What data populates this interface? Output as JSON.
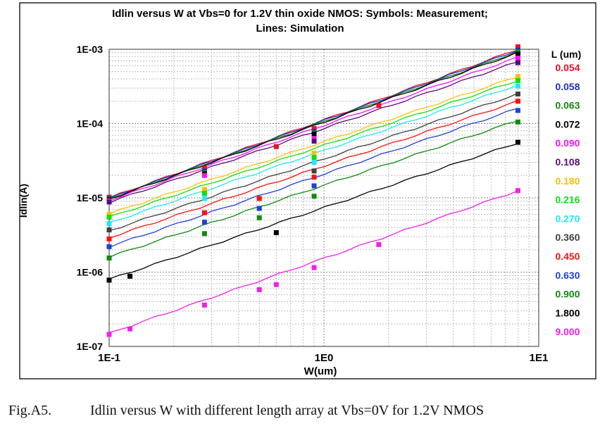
{
  "chart_data": {
    "type": "line",
    "title_line1": "Idlin versus W at Vbs=0 for 1.2V thin oxide NMOS: Symbols: Measurement;",
    "title_line2": "Lines: Simulation",
    "xlabel": "W(um)",
    "ylabel": "Idlin(A)",
    "x_scale": "log",
    "y_scale": "log",
    "xlim": [
      0.1,
      10
    ],
    "ylim": [
      1e-07,
      0.001
    ],
    "x_ticks": [
      "1E-1",
      "1E0",
      "1E1"
    ],
    "y_ticks": [
      "1E-03",
      "1E-04",
      "1E-05",
      "1E-06",
      "1E-07"
    ],
    "grid": true,
    "legend_title": "L (um)",
    "legend_position": "right",
    "series": [
      {
        "name": "0.054",
        "color": "#e8102a",
        "sim_y0": 1e-05,
        "sim_y1": 0.001,
        "meas": [
          [
            0.1,
            1.02e-05
          ],
          [
            0.278,
            2.5e-05
          ],
          [
            0.6,
            4.9e-05
          ],
          [
            0.9,
            8.6e-05
          ],
          [
            1.8,
            0.000175
          ],
          [
            8.0,
            0.00108
          ]
        ]
      },
      {
        "name": "0.058",
        "color": "#1c2fc8",
        "sim_y0": 9.9e-06,
        "sim_y1": 0.00097,
        "meas": [
          [
            0.1,
            9.8e-06
          ],
          [
            0.278,
            2.3e-05
          ],
          [
            0.9,
            7.8e-05
          ],
          [
            8.0,
            0.00097
          ]
        ]
      },
      {
        "name": "0.063",
        "color": "#108a10",
        "sim_y0": 9.7e-06,
        "sim_y1": 0.00093,
        "meas": [
          [
            0.1,
            9.6e-06
          ],
          [
            0.278,
            2.2e-05
          ],
          [
            0.9,
            7.5e-05
          ],
          [
            8.0,
            0.00093
          ]
        ]
      },
      {
        "name": "0.072",
        "color": "#000000",
        "sim_y0": 9.6e-06,
        "sim_y1": 0.0009,
        "meas": [
          [
            0.1,
            9.4e-06
          ],
          [
            0.278,
            2.1e-05
          ],
          [
            0.9,
            7.2e-05
          ],
          [
            8.0,
            0.00086
          ]
        ]
      },
      {
        "name": "0.090",
        "color": "#ff10ff",
        "sim_y0": 9.2e-06,
        "sim_y1": 0.00078,
        "meas": [
          [
            0.1,
            9.1e-06
          ],
          [
            0.278,
            2e-05
          ],
          [
            0.9,
            6.3e-05
          ],
          [
            8.0,
            0.00076
          ]
        ]
      },
      {
        "name": "0.108",
        "color": "#5a0a78",
        "sim_y0": 8.7e-06,
        "sim_y1": 0.00068,
        "meas": [
          [
            0.1,
            8.8e-06
          ],
          [
            0.9,
            5.8e-05
          ],
          [
            8.0,
            0.00066
          ]
        ]
      },
      {
        "name": "0.180",
        "color": "#ffc000",
        "sim_y0": 6.1e-06,
        "sim_y1": 0.00043,
        "meas": [
          [
            0.1,
            6e-06
          ],
          [
            0.278,
            1.3e-05
          ],
          [
            0.9,
            4e-05
          ],
          [
            8.0,
            0.00043
          ]
        ]
      },
      {
        "name": "0.216",
        "color": "#10e010",
        "sim_y0": 5.5e-06,
        "sim_y1": 0.00038,
        "meas": [
          [
            0.1,
            5.5e-06
          ],
          [
            0.278,
            1.15e-05
          ],
          [
            0.9,
            3.5e-05
          ],
          [
            8.0,
            0.00038
          ]
        ]
      },
      {
        "name": "0.270",
        "color": "#20e8ff",
        "sim_y0": 4.6e-06,
        "sim_y1": 0.00033,
        "meas": [
          [
            0.1,
            4.5e-06
          ],
          [
            0.278,
            9.8e-06
          ],
          [
            0.9,
            3e-05
          ],
          [
            8.0,
            0.00032
          ]
        ]
      },
      {
        "name": "0.360",
        "color": "#404040",
        "sim_y0": 3.6e-06,
        "sim_y1": 0.00025,
        "meas": [
          [
            0.1,
            3.7e-06
          ],
          [
            0.9,
            2.3e-05
          ],
          [
            8.0,
            0.00025
          ]
        ]
      },
      {
        "name": "0.450",
        "color": "#ff1010",
        "sim_y0": 2.9e-06,
        "sim_y1": 0.0002,
        "meas": [
          [
            0.1,
            2.8e-06
          ],
          [
            0.278,
            6.3e-06
          ],
          [
            0.5,
            9.8e-06
          ],
          [
            0.9,
            1.9e-05
          ],
          [
            8.0,
            0.0002
          ]
        ]
      },
      {
        "name": "0.630",
        "color": "#2040d8",
        "sim_y0": 2.2e-06,
        "sim_y1": 0.00016,
        "meas": [
          [
            0.1,
            2.2e-06
          ],
          [
            0.278,
            4.7e-06
          ],
          [
            0.5,
            7.2e-06
          ],
          [
            0.9,
            1.45e-05
          ],
          [
            8.0,
            0.00015
          ]
        ]
      },
      {
        "name": "0.900",
        "color": "#108a10",
        "sim_y0": 1.6e-06,
        "sim_y1": 0.00011,
        "meas": [
          [
            0.1,
            1.55e-06
          ],
          [
            0.278,
            3.3e-06
          ],
          [
            0.5,
            5.4e-06
          ],
          [
            0.9,
            1.05e-05
          ],
          [
            8.0,
            0.000105
          ]
        ]
      },
      {
        "name": "1.800",
        "color": "#000000",
        "sim_y0": 8e-07,
        "sim_y1": 5.5e-05,
        "meas": [
          [
            0.1,
            7.8e-07
          ],
          [
            0.125,
            8.8e-07
          ],
          [
            0.6,
            3.4e-06
          ],
          [
            8.0,
            5.6e-05
          ]
        ]
      },
      {
        "name": "9.000",
        "color": "#f020e8",
        "sim_y0": 1.5e-07,
        "sim_y1": 1.25e-05,
        "meas": [
          [
            0.1,
            1.45e-07
          ],
          [
            0.125,
            1.72e-07
          ],
          [
            0.278,
            3.6e-07
          ],
          [
            0.5,
            5.8e-07
          ],
          [
            0.6,
            6.8e-07
          ],
          [
            0.9,
            1.15e-06
          ],
          [
            1.8,
            2.35e-06
          ],
          [
            8.0,
            1.25e-05
          ]
        ]
      }
    ]
  },
  "caption": {
    "label": "Fig.A5.",
    "text": "Idlin versus W with different length array at Vbs=0V for 1.2V NMOS"
  }
}
